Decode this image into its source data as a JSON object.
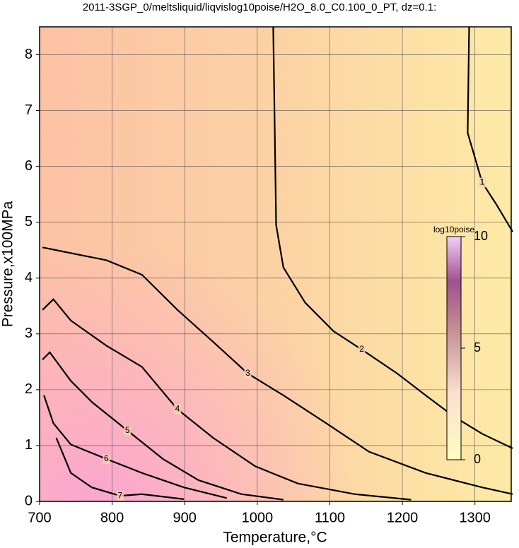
{
  "chart_data": {
    "type": "contour",
    "title": "2011-3SGP_0/meltsliquid/liqvislog10poise/H2O_8.0_C0.100_0_PT, dz=0.1:",
    "x_label": "Temperature,°C",
    "y_label": "Pressure,x100MPa",
    "xlim": [
      700,
      1350
    ],
    "ylim": [
      0,
      8.5
    ],
    "xticks": [
      700,
      800,
      900,
      1000,
      1100,
      1200,
      1300
    ],
    "yticks": [
      0,
      1,
      2,
      3,
      4,
      5,
      6,
      7,
      8
    ],
    "grid": true,
    "line_color": "#000000",
    "contours": [
      {
        "level": 1,
        "x": [
          1292,
          1290,
          1310,
          1329,
          1352
        ],
        "y": [
          8.5,
          6.6,
          5.71,
          5.33,
          4.83
        ]
      },
      {
        "level": 2,
        "x": [
          1022,
          1026,
          1036,
          1066,
          1105,
          1144,
          1193,
          1232,
          1271,
          1310,
          1352
        ],
        "y": [
          8.5,
          4.95,
          4.19,
          3.56,
          3.05,
          2.72,
          2.29,
          1.9,
          1.52,
          1.21,
          0.95
        ]
      },
      {
        "level": 3,
        "x": [
          704,
          723,
          792,
          841,
          890,
          939,
          987,
          1036,
          1095,
          1154,
          1232,
          1310,
          1352
        ],
        "y": [
          4.55,
          4.5,
          4.32,
          4.06,
          3.43,
          2.86,
          2.29,
          1.9,
          1.4,
          0.89,
          0.51,
          0.25,
          0.13
        ]
      },
      {
        "level": 4,
        "x": [
          704,
          719,
          743,
          792,
          841,
          890,
          939,
          997,
          1056,
          1134,
          1212
        ],
        "y": [
          3.43,
          3.62,
          3.24,
          2.79,
          2.41,
          1.65,
          1.14,
          0.63,
          0.32,
          0.13,
          0.03
        ]
      },
      {
        "level": 5,
        "x": [
          704,
          714,
          743,
          772,
          821,
          870,
          919,
          978,
          1036
        ],
        "y": [
          2.54,
          2.67,
          2.16,
          1.78,
          1.27,
          0.76,
          0.38,
          0.13,
          0.03
        ]
      },
      {
        "level": 6,
        "x": [
          706,
          719,
          743,
          792,
          841,
          899,
          958
        ],
        "y": [
          1.9,
          1.4,
          1.02,
          0.76,
          0.51,
          0.25,
          0.06
        ]
      },
      {
        "level": 7,
        "x": [
          723,
          743,
          772,
          811,
          841,
          899
        ],
        "y": [
          1.14,
          0.51,
          0.25,
          0.1,
          0.13,
          0.04
        ]
      }
    ],
    "colorbar": {
      "label": "log10poise",
      "lim": [
        0,
        10
      ],
      "ticks": [
        0,
        5,
        10
      ]
    }
  }
}
